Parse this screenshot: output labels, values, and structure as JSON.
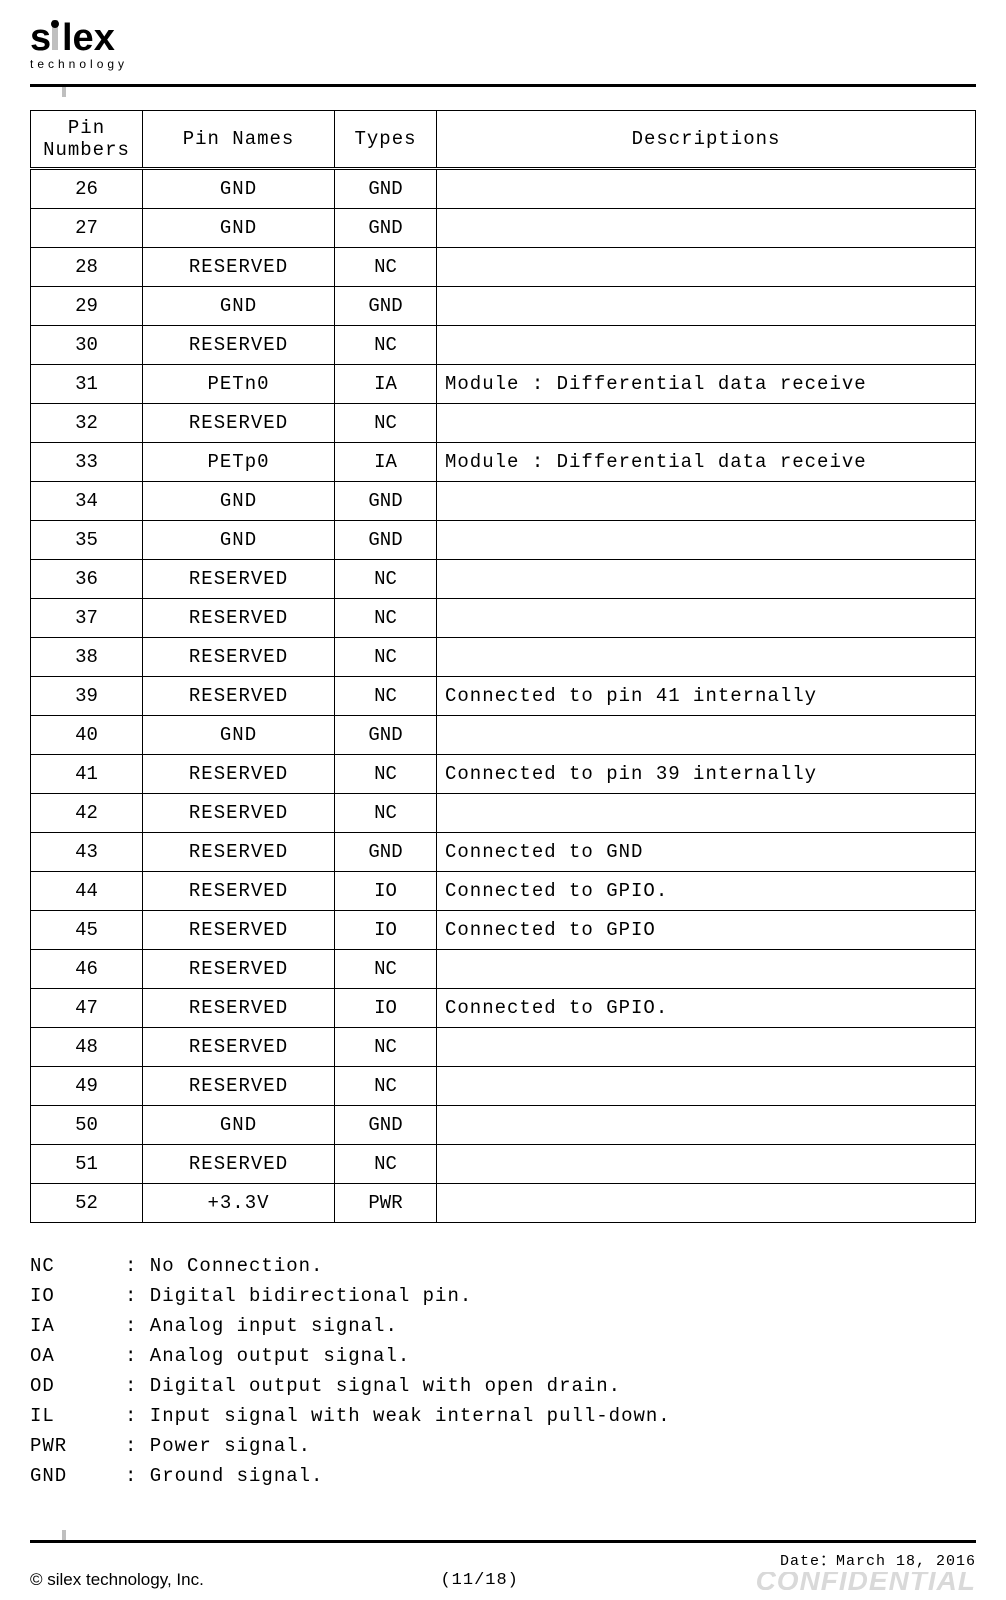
{
  "logo": {
    "main": "silex",
    "sub": "t e c h n o l o g y"
  },
  "table": {
    "headers": {
      "pin_numbers": "Pin Numbers",
      "pin_names": "Pin Names",
      "types": "Types",
      "descriptions": "Descriptions"
    },
    "rows": [
      {
        "num": "26",
        "name": "GND",
        "type": "GND",
        "desc": ""
      },
      {
        "num": "27",
        "name": "GND",
        "type": "GND",
        "desc": ""
      },
      {
        "num": "28",
        "name": "RESERVED",
        "type": "NC",
        "desc": ""
      },
      {
        "num": "29",
        "name": "GND",
        "type": "GND",
        "desc": ""
      },
      {
        "num": "30",
        "name": "RESERVED",
        "type": "NC",
        "desc": ""
      },
      {
        "num": "31",
        "name": "PETn0",
        "type": "IA",
        "desc": "Module : Differential data receive"
      },
      {
        "num": "32",
        "name": "RESERVED",
        "type": "NC",
        "desc": ""
      },
      {
        "num": "33",
        "name": "PETp0",
        "type": "IA",
        "desc": "Module : Differential data receive"
      },
      {
        "num": "34",
        "name": "GND",
        "type": "GND",
        "desc": ""
      },
      {
        "num": "35",
        "name": "GND",
        "type": "GND",
        "desc": ""
      },
      {
        "num": "36",
        "name": "RESERVED",
        "type": "NC",
        "desc": ""
      },
      {
        "num": "37",
        "name": "RESERVED",
        "type": "NC",
        "desc": ""
      },
      {
        "num": "38",
        "name": "RESERVED",
        "type": "NC",
        "desc": ""
      },
      {
        "num": "39",
        "name": "RESERVED",
        "type": "NC",
        "desc": "Connected to pin 41 internally"
      },
      {
        "num": "40",
        "name": "GND",
        "type": "GND",
        "desc": ""
      },
      {
        "num": "41",
        "name": "RESERVED",
        "type": "NC",
        "desc": "Connected to pin 39 internally"
      },
      {
        "num": "42",
        "name": "RESERVED",
        "type": "NC",
        "desc": ""
      },
      {
        "num": "43",
        "name": "RESERVED",
        "type": "GND",
        "desc": "Connected to GND"
      },
      {
        "num": "44",
        "name": "RESERVED",
        "type": "IO",
        "desc": "Connected to GPIO."
      },
      {
        "num": "45",
        "name": "RESERVED",
        "type": "IO",
        "desc": "Connected to GPIO"
      },
      {
        "num": "46",
        "name": "RESERVED",
        "type": "NC",
        "desc": ""
      },
      {
        "num": "47",
        "name": "RESERVED",
        "type": "IO",
        "desc": "Connected to GPIO."
      },
      {
        "num": "48",
        "name": "RESERVED",
        "type": "NC",
        "desc": ""
      },
      {
        "num": "49",
        "name": "RESERVED",
        "type": "NC",
        "desc": ""
      },
      {
        "num": "50",
        "name": "GND",
        "type": "GND",
        "desc": ""
      },
      {
        "num": "51",
        "name": "RESERVED",
        "type": "NC",
        "desc": ""
      },
      {
        "num": "52",
        "name": "+3.3V",
        "type": "PWR",
        "desc": ""
      }
    ]
  },
  "legend": [
    {
      "code": "NC",
      "desc": ": No Connection."
    },
    {
      "code": "IO",
      "desc": ": Digital bidirectional pin."
    },
    {
      "code": "IA",
      "desc": ": Analog input signal."
    },
    {
      "code": "OA",
      "desc": ": Analog output signal."
    },
    {
      "code": "OD",
      "desc": ": Digital output signal with open drain."
    },
    {
      "code": "IL",
      "desc": ": Input signal with weak internal pull-down."
    },
    {
      "code": "PWR",
      "desc": ": Power signal."
    },
    {
      "code": "GND",
      "desc": ": Ground signal."
    }
  ],
  "footer": {
    "copyright": "© silex technology, Inc.",
    "page": "(11/18)",
    "date": "Date：March 18, 2016",
    "watermark": "CONFIDENTIAL"
  }
}
